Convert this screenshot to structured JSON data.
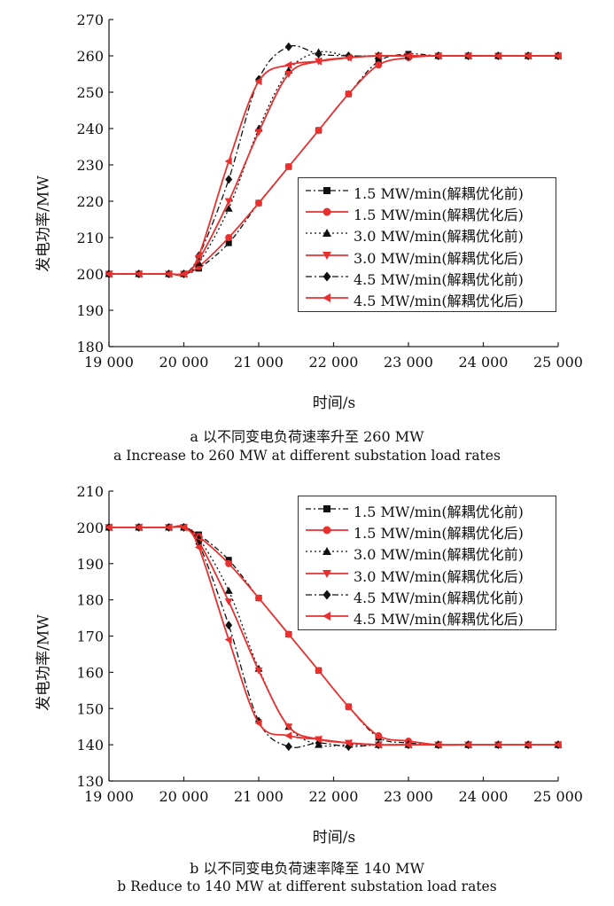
{
  "chart_data": [
    {
      "type": "line",
      "ylabel": "发电功率/MW",
      "xlabel": "时间/s",
      "caption_cn": "a  以不同变电负荷速率升至 260 MW",
      "caption_en": "a  Increase to 260 MW at different substation load rates",
      "xlim": [
        19000,
        25000
      ],
      "ylim": [
        180,
        270
      ],
      "x_ticks": [
        19000,
        20000,
        21000,
        22000,
        23000,
        24000,
        25000
      ],
      "x_tick_labels": [
        "19 000",
        "20 000",
        "21 000",
        "22 000",
        "23 000",
        "24 000",
        "25 000"
      ],
      "y_ticks": [
        180,
        190,
        200,
        210,
        220,
        230,
        240,
        250,
        260,
        270
      ],
      "y_tick_labels": [
        "180",
        "190",
        "200",
        "210",
        "220",
        "230",
        "240",
        "250",
        "260",
        "270"
      ],
      "grid": false,
      "legend_position": "center-right",
      "series": [
        {
          "name": "1.5 MW/min(解耦优化前)",
          "color": "#111111",
          "dash": "6,3,2,3",
          "marker": "square",
          "x": [
            19000,
            19400,
            19800,
            20000,
            20200,
            20600,
            21000,
            21400,
            21800,
            22200,
            22600,
            23000,
            23400,
            23800,
            24200,
            24600,
            25000
          ],
          "y": [
            200,
            200,
            200,
            200,
            201.5,
            208.5,
            219.5,
            229.5,
            239.5,
            249.5,
            258.5,
            260.5,
            260,
            260,
            260,
            260,
            260
          ]
        },
        {
          "name": "1.5 MW/min(解耦优化后)",
          "color": "#e8302f",
          "dash": "",
          "marker": "circle",
          "x": [
            19000,
            19400,
            19800,
            20000,
            20200,
            20600,
            21000,
            21400,
            21800,
            22200,
            22600,
            23000,
            23400,
            23800,
            24200,
            24600,
            25000
          ],
          "y": [
            200,
            200,
            200,
            200,
            202,
            210,
            219.5,
            229.5,
            239.5,
            249.5,
            257.5,
            259.5,
            260,
            260,
            260,
            260,
            260
          ]
        },
        {
          "name": "3.0 MW/min(解耦优化前)",
          "color": "#111111",
          "dash": "2,3",
          "marker": "triangle",
          "x": [
            19000,
            19400,
            19800,
            20000,
            20200,
            20600,
            21000,
            21400,
            21800,
            22200,
            22600,
            23000,
            23400,
            23800,
            24200,
            24600,
            25000
          ],
          "y": [
            200,
            200,
            200,
            200,
            203,
            218,
            240,
            256,
            261,
            260,
            260,
            260,
            260,
            260,
            260,
            260,
            260
          ]
        },
        {
          "name": "3.0 MW/min(解耦优化后)",
          "color": "#e8302f",
          "dash": "",
          "marker": "triangle-down",
          "x": [
            19000,
            19400,
            19800,
            20000,
            20200,
            20600,
            21000,
            21400,
            21800,
            22200,
            22600,
            23000,
            23400,
            23800,
            24200,
            24600,
            25000
          ],
          "y": [
            200,
            200,
            200,
            200,
            204,
            220,
            239,
            255,
            258.5,
            259.5,
            260,
            260,
            260,
            260,
            260,
            260,
            260
          ]
        },
        {
          "name": "4.5 MW/min(解耦优化前)",
          "color": "#111111",
          "dash": "7,3,2,3",
          "marker": "diamond",
          "x": [
            19000,
            19400,
            19800,
            20000,
            20200,
            20600,
            21000,
            21400,
            21800,
            22200,
            22600,
            23000,
            23400,
            23800,
            24200,
            24600,
            25000
          ],
          "y": [
            200,
            200,
            200,
            200,
            205,
            226,
            253.5,
            262.5,
            260.5,
            260,
            260,
            260,
            260,
            260,
            260,
            260,
            260
          ]
        },
        {
          "name": "4.5 MW/min(解耦优化后)",
          "color": "#e8302f",
          "dash": "",
          "marker": "triangle-left",
          "x": [
            19000,
            19400,
            19800,
            20000,
            20200,
            20600,
            21000,
            21400,
            21800,
            22200,
            22600,
            23000,
            23400,
            23800,
            24200,
            24600,
            25000
          ],
          "y": [
            200,
            200,
            200,
            200,
            205,
            231,
            253,
            257.5,
            258.5,
            259.5,
            260,
            260,
            260,
            260,
            260,
            260,
            260
          ]
        }
      ]
    },
    {
      "type": "line",
      "ylabel": "发电功率/MW",
      "xlabel": "时间/s",
      "caption_cn": "b  以不同变电负荷速率降至 140 MW",
      "caption_en": "b  Reduce to 140 MW at different substation load rates",
      "xlim": [
        19000,
        25000
      ],
      "ylim": [
        130,
        210
      ],
      "x_ticks": [
        19000,
        20000,
        21000,
        22000,
        23000,
        24000,
        25000
      ],
      "x_tick_labels": [
        "19 000",
        "20 000",
        "21 000",
        "22 000",
        "23 000",
        "24 000",
        "25 000"
      ],
      "y_ticks": [
        130,
        140,
        150,
        160,
        170,
        180,
        190,
        200,
        210
      ],
      "y_tick_labels": [
        "130",
        "140",
        "150",
        "160",
        "170",
        "180",
        "190",
        "200",
        "210"
      ],
      "grid": false,
      "legend_position": "top-right",
      "series": [
        {
          "name": "1.5 MW/min(解耦优化前)",
          "color": "#111111",
          "dash": "6,3,2,3",
          "marker": "square",
          "x": [
            19000,
            19400,
            19800,
            20000,
            20200,
            20600,
            21000,
            21400,
            21800,
            22200,
            22600,
            23000,
            23400,
            23800,
            24200,
            24600,
            25000
          ],
          "y": [
            200,
            200,
            200,
            200,
            198,
            191,
            180.5,
            170.5,
            160.5,
            150.5,
            142,
            140.5,
            140,
            140,
            140,
            140,
            140
          ]
        },
        {
          "name": "1.5 MW/min(解耦优化后)",
          "color": "#e8302f",
          "dash": "",
          "marker": "circle",
          "x": [
            19000,
            19400,
            19800,
            20000,
            20200,
            20600,
            21000,
            21400,
            21800,
            22200,
            22600,
            23000,
            23400,
            23800,
            24200,
            24600,
            25000
          ],
          "y": [
            200,
            200,
            200,
            200,
            197.5,
            190,
            180.5,
            170.5,
            160.5,
            150.5,
            142.5,
            141,
            140,
            140,
            140,
            140,
            140
          ]
        },
        {
          "name": "3.0 MW/min(解耦优化前)",
          "color": "#111111",
          "dash": "2,3",
          "marker": "triangle",
          "x": [
            19000,
            19400,
            19800,
            20000,
            20200,
            20600,
            21000,
            21400,
            21800,
            22200,
            22600,
            23000,
            23400,
            23800,
            24200,
            24600,
            25000
          ],
          "y": [
            200,
            200,
            200,
            200,
            197,
            182.5,
            161,
            145,
            140,
            140,
            140,
            140,
            140,
            140,
            140,
            140,
            140
          ]
        },
        {
          "name": "3.0 MW/min(解耦优化后)",
          "color": "#e8302f",
          "dash": "",
          "marker": "triangle-down",
          "x": [
            19000,
            19400,
            19800,
            20000,
            20200,
            20600,
            21000,
            21400,
            21800,
            22200,
            22600,
            23000,
            23400,
            23800,
            24200,
            24600,
            25000
          ],
          "y": [
            200,
            200,
            200,
            200,
            196,
            179.5,
            160.5,
            145,
            141.5,
            140.5,
            140,
            140,
            140,
            140,
            140,
            140,
            140
          ]
        },
        {
          "name": "4.5 MW/min(解耦优化前)",
          "color": "#111111",
          "dash": "7,3,2,3",
          "marker": "diamond",
          "x": [
            19000,
            19400,
            19800,
            20000,
            20200,
            20600,
            21000,
            21400,
            21800,
            22200,
            22600,
            23000,
            23400,
            23800,
            24200,
            24600,
            25000
          ],
          "y": [
            200,
            200,
            200,
            200,
            195.5,
            173,
            146.5,
            139.5,
            140.5,
            139.5,
            140,
            140,
            140,
            140,
            140,
            140,
            140
          ]
        },
        {
          "name": "4.5 MW/min(解耦优化后)",
          "color": "#e8302f",
          "dash": "",
          "marker": "triangle-left",
          "x": [
            19000,
            19400,
            19800,
            20000,
            20200,
            20600,
            21000,
            21400,
            21800,
            22200,
            22600,
            23000,
            23400,
            23800,
            24200,
            24600,
            25000
          ],
          "y": [
            200,
            200,
            200,
            200,
            194.5,
            169,
            146,
            142.5,
            141.5,
            140.5,
            140,
            140,
            140,
            140,
            140,
            140,
            140
          ]
        }
      ]
    }
  ]
}
